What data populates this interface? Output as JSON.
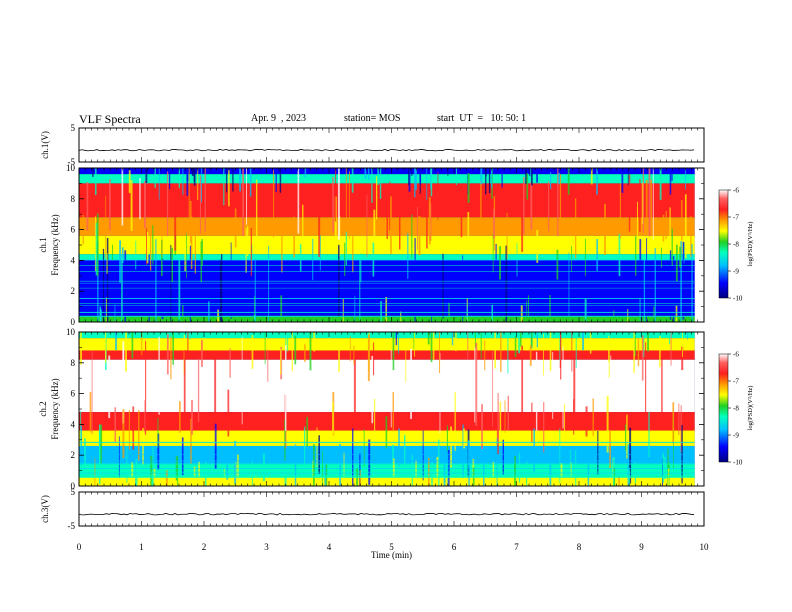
{
  "header": {
    "title": "VLF Spectra",
    "date": "Apr. 9  , 2023",
    "station": "station= MOS",
    "start": "start  UT  =   10: 50: 1"
  },
  "colors": {
    "colormap": [
      "#00007f",
      "#0000ff",
      "#00bfff",
      "#00ffc0",
      "#22d022",
      "#ffff00",
      "#ff9a00",
      "#ff2020",
      "#ff6060",
      "#ffffff"
    ]
  },
  "chart_data": [
    {
      "type": "line",
      "panel": "ch1-waveform",
      "ylabel": "ch.1(V)",
      "ylim": [
        -5,
        5
      ],
      "yticks": [
        "5",
        "-5"
      ],
      "series_level": -1.5
    },
    {
      "type": "heatmap",
      "panel": "ch1-spectrogram",
      "ylabel_top": "ch.1",
      "ylabel": "Frequency (kHz)",
      "ylim": [
        0,
        10
      ],
      "yticks": [
        "0",
        "2",
        "4",
        "6",
        "8",
        "10"
      ],
      "colorbar": {
        "label": "log(PSD)(V²/Hz)",
        "range": [
          -10,
          -6
        ],
        "ticks": [
          "-6",
          "-7",
          "-8",
          "-9",
          "-10"
        ]
      },
      "bands": [
        {
          "from": 9.6,
          "to": 10,
          "value": -9.6
        },
        {
          "from": 9.0,
          "to": 9.6,
          "value": -8.6
        },
        {
          "from": 6.8,
          "to": 9.0,
          "value": -6.9
        },
        {
          "from": 5.6,
          "to": 6.8,
          "value": -7.2
        },
        {
          "from": 4.4,
          "to": 5.6,
          "value": -7.8
        },
        {
          "from": 4.0,
          "to": 4.4,
          "value": -8.6
        },
        {
          "from": 0.4,
          "to": 4.0,
          "value": -9.4
        },
        {
          "from": 0.0,
          "to": 0.4,
          "value": -8.4
        }
      ]
    },
    {
      "type": "heatmap",
      "panel": "ch2-spectrogram",
      "ylabel_top": "ch.2",
      "ylabel": "Frequency (kHz)",
      "ylim": [
        0,
        10
      ],
      "yticks": [
        "0",
        "2",
        "4",
        "6",
        "8",
        "10"
      ],
      "colorbar": {
        "label": "log(PSD)(V²/Hz)",
        "range": [
          -10,
          -6
        ],
        "ticks": [
          "-6",
          "-7",
          "-8",
          "-9",
          "-10"
        ]
      },
      "bands": [
        {
          "from": 9.6,
          "to": 10,
          "value": -8.6
        },
        {
          "from": 8.8,
          "to": 9.6,
          "value": -7.8
        },
        {
          "from": 8.2,
          "to": 8.8,
          "value": -7.1
        },
        {
          "from": 4.8,
          "to": 8.2,
          "value": -6.2
        },
        {
          "from": 3.6,
          "to": 4.8,
          "value": -7.1
        },
        {
          "from": 2.6,
          "to": 3.6,
          "value": -7.8
        },
        {
          "from": 1.4,
          "to": 2.6,
          "value": -9.3
        },
        {
          "from": 0.6,
          "to": 1.4,
          "value": -8.7
        },
        {
          "from": 0.0,
          "to": 0.6,
          "value": -8.0
        }
      ]
    },
    {
      "type": "line",
      "panel": "ch3-waveform",
      "ylabel": "ch.3(V)",
      "ylim": [
        -5,
        5
      ],
      "yticks": [
        "5",
        "-5"
      ],
      "series_level": -1.5
    }
  ],
  "x_axis": {
    "label": "Time (min)",
    "xlim": [
      0,
      10
    ],
    "data_end": 9.85,
    "ticks": [
      "0",
      "1",
      "2",
      "3",
      "4",
      "5",
      "6",
      "7",
      "8",
      "9",
      "10"
    ]
  }
}
